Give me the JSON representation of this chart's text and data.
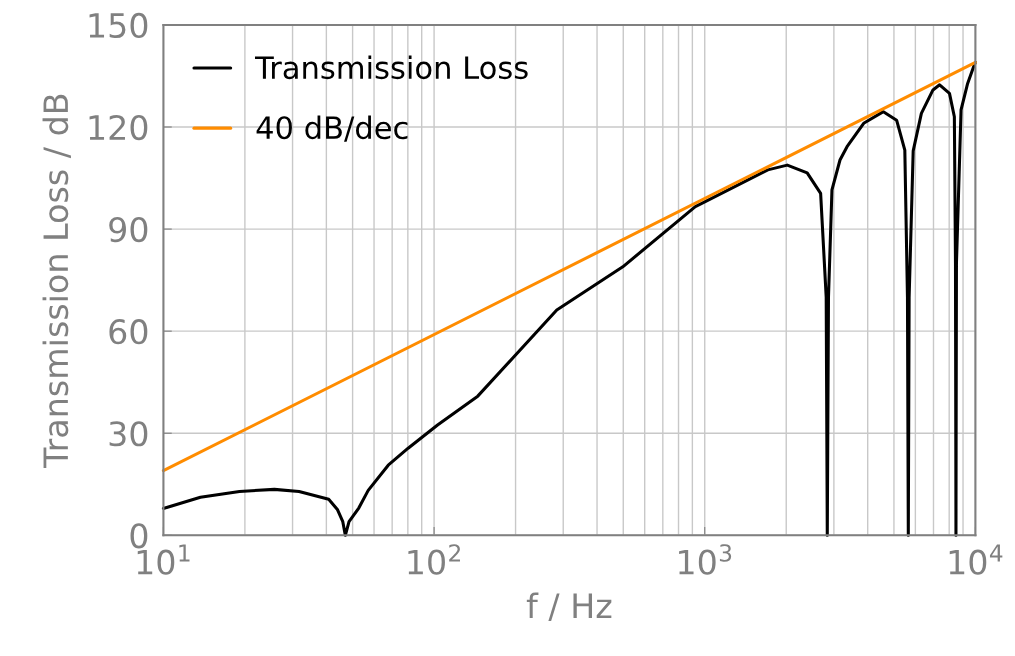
{
  "chart_data": {
    "type": "line",
    "xlabel": "f / Hz",
    "ylabel": "Transmission Loss / dB",
    "log": "x",
    "xlim": [
      10,
      10000
    ],
    "xticks": [
      {
        "value": 10,
        "label": "10$^{1}$"
      },
      {
        "value": 100,
        "label": "10$^{2}$"
      },
      {
        "value": 1000,
        "label": "10$^{3}$"
      },
      {
        "value": 10000,
        "label": "10$^{4}$"
      }
    ],
    "ylim": [
      0,
      150
    ],
    "yticks": [
      0,
      30,
      60,
      90,
      120,
      150
    ],
    "grid": true,
    "legend": "top left",
    "marker": "none",
    "line_style": "solid",
    "series": [
      {
        "name": "Transmission Loss",
        "color": "#000000",
        "x": [
          10,
          13.7,
          19.1,
          25.7,
          31.7,
          40.8,
          44,
          46,
          47,
          48.5,
          52.7,
          57.1,
          67.7,
          80.2,
          103,
          145,
          284,
          498,
          923,
          1000,
          1710,
          2018,
          2390,
          2680,
          2810,
          2836,
          2865,
          2951,
          3160,
          3355,
          3865,
          4570,
          5115,
          5485,
          5610,
          5650,
          5690,
          5890,
          6315,
          6970,
          7375,
          8020,
          8360,
          8440,
          8465,
          8475,
          8485,
          8510,
          8850,
          9360,
          9900,
          10000
        ],
        "values": [
          7.9,
          11.2,
          12.9,
          13.5,
          12.9,
          10.6,
          7.5,
          4,
          0,
          4,
          8,
          13.2,
          20.6,
          25.6,
          32.4,
          40.9,
          66.2,
          78.9,
          96.6,
          98,
          107.4,
          108.8,
          106.5,
          100.5,
          70,
          0,
          70,
          101.5,
          110.3,
          114.2,
          121.1,
          124.5,
          122,
          113.2,
          70,
          0,
          70,
          113,
          124,
          130.9,
          132.4,
          129.9,
          123,
          80,
          25,
          0,
          25,
          80,
          125,
          132.8,
          138.2,
          139
        ]
      },
      {
        "name": "40 dB/dec",
        "color": "#ff8c00",
        "x": [
          10,
          10000
        ],
        "values": [
          19,
          139
        ]
      }
    ]
  }
}
